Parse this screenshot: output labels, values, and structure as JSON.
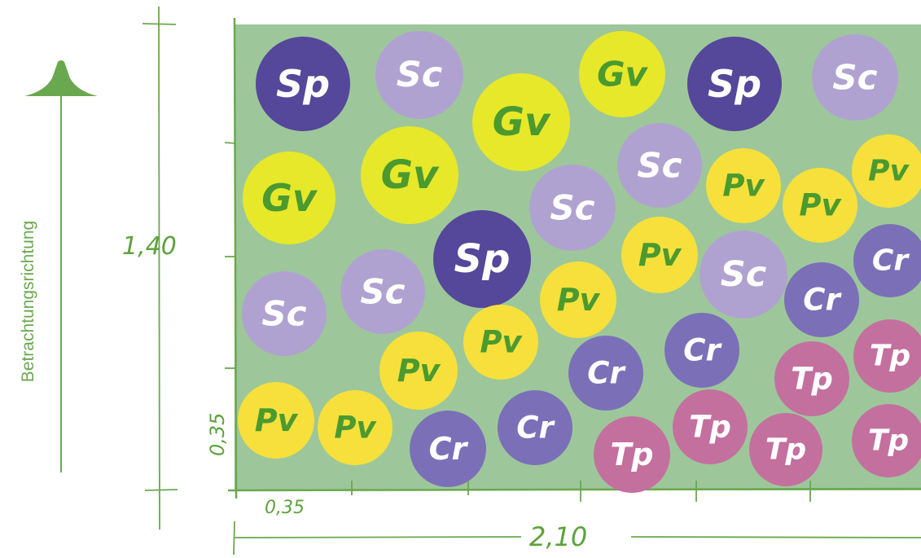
{
  "direction_label": "Betrachtungsrichtung",
  "dimensions": {
    "height_total": "1,40",
    "height_step": "0,35",
    "width_total": "2,10",
    "width_step": "0,35"
  },
  "colors": {
    "bed": "#9dc79a",
    "bed_border": "#6aa84f",
    "dimension_line": "#6aa84f",
    "arrow": "#6aa84f"
  },
  "plant_types": {
    "Sp": {
      "fill": "#55479a",
      "text_color": "#ffffff"
    },
    "Sc": {
      "fill": "#b0a2d0",
      "text_color": "#ffffff"
    },
    "Gv": {
      "fill": "#e7e82a",
      "text_color": "#4a9a30"
    },
    "Pv": {
      "fill": "#f7e03b",
      "text_color": "#4a9a30"
    },
    "Cr": {
      "fill": "#7b70b8",
      "text_color": "#ffffff"
    },
    "Tp": {
      "fill": "#c3709f",
      "text_color": "#ffffff"
    }
  },
  "plants": [
    {
      "label": "Sp"
    },
    {
      "label": "Sc"
    },
    {
      "label": "Gv"
    },
    {
      "label": "Gv"
    },
    {
      "label": "Sp"
    },
    {
      "label": "Sc"
    },
    {
      "label": "Gv"
    },
    {
      "label": "Gv"
    },
    {
      "label": "Sc"
    },
    {
      "label": "Sc"
    },
    {
      "label": "Pv"
    },
    {
      "label": "Pv"
    },
    {
      "label": "Pv"
    },
    {
      "label": "Sp"
    },
    {
      "label": "Pv"
    },
    {
      "label": "Sc"
    },
    {
      "label": "Sc"
    },
    {
      "label": "Pv"
    },
    {
      "label": "Sc"
    },
    {
      "label": "Cr"
    },
    {
      "label": "Cr"
    },
    {
      "label": "Pv"
    },
    {
      "label": "Pv"
    },
    {
      "label": "Cr"
    },
    {
      "label": "Cr"
    },
    {
      "label": "Tp"
    },
    {
      "label": "Tp"
    },
    {
      "label": "Pv"
    },
    {
      "label": "Pv"
    },
    {
      "label": "Cr"
    },
    {
      "label": "Cr"
    },
    {
      "label": "Tp"
    },
    {
      "label": "Tp"
    },
    {
      "label": "Tp"
    },
    {
      "label": "Tp"
    }
  ]
}
